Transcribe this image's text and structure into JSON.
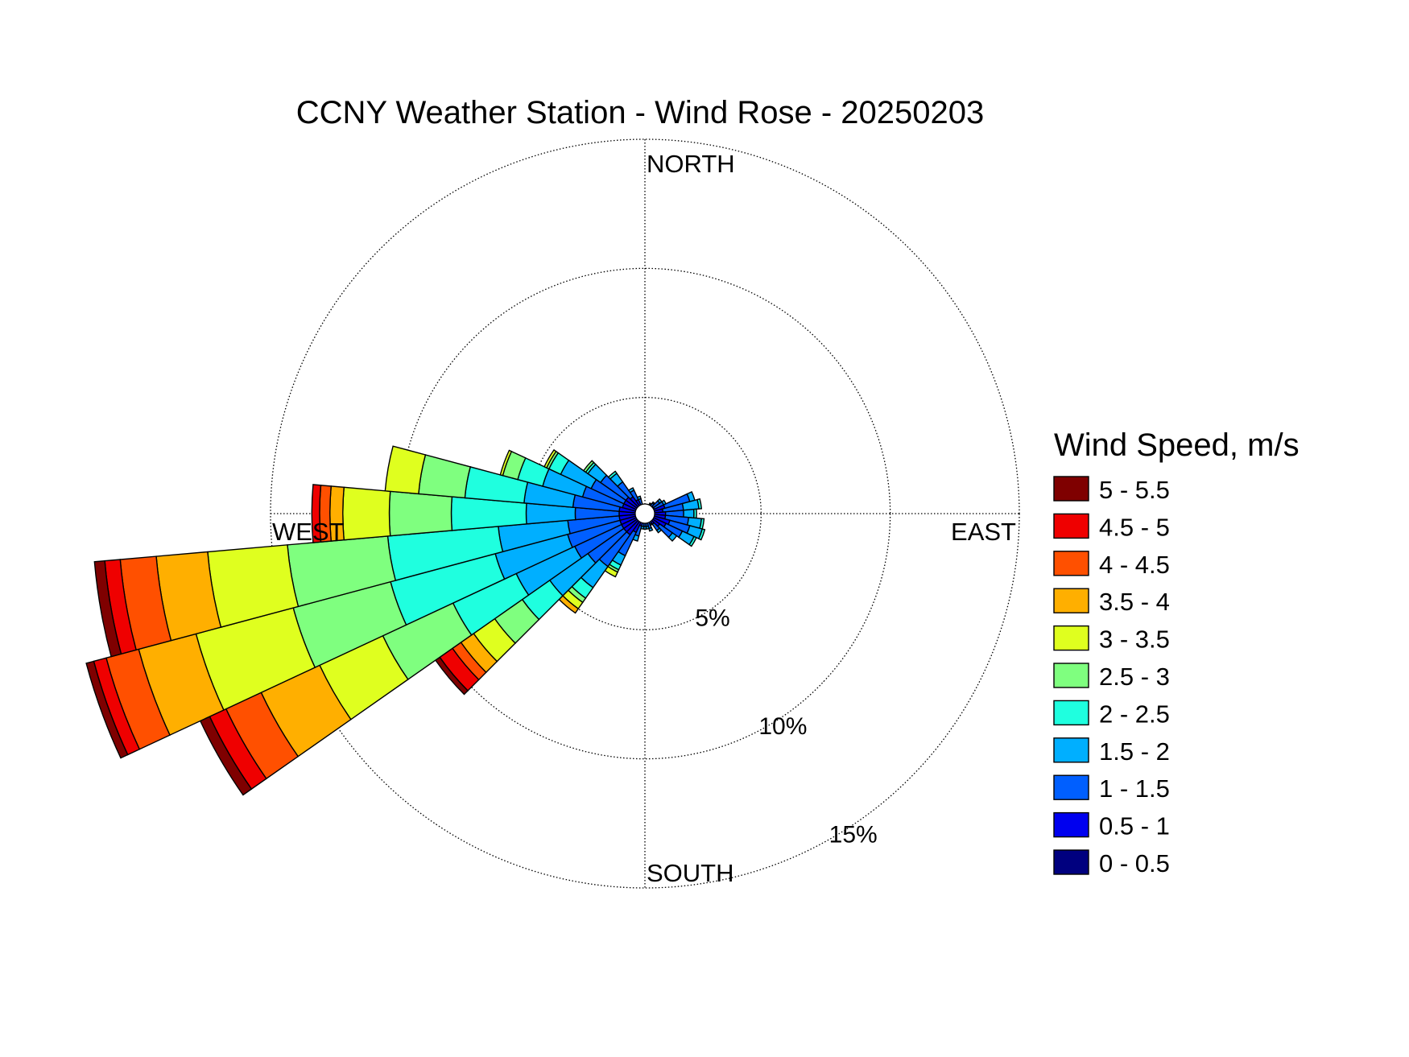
{
  "chart_data": {
    "type": "wind-rose",
    "title": "CCNY Weather Station - Wind Rose - 20250203",
    "directions": {
      "north": "NORTH",
      "east": "EAST",
      "south": "SOUTH",
      "west": "WEST"
    },
    "radial_labels": [
      "5%",
      "10%",
      "15%"
    ],
    "radial_ticks": [
      5,
      10,
      15
    ],
    "rmax": 15,
    "rmin": 0.5,
    "grid": true,
    "legend_title": "Wind Speed, m/s",
    "legend_position": "right",
    "bins": [
      {
        "label": "0 - 0.5",
        "color": "#00007f"
      },
      {
        "label": "0.5 - 1",
        "color": "#0000ef"
      },
      {
        "label": "1 - 1.5",
        "color": "#005fff"
      },
      {
        "label": "1.5 - 2",
        "color": "#00afff"
      },
      {
        "label": "2 - 2.5",
        "color": "#1fffdf"
      },
      {
        "label": "2.5 - 3",
        "color": "#7fff7f"
      },
      {
        "label": "3 - 3.5",
        "color": "#dfff1f"
      },
      {
        "label": "3.5 - 4",
        "color": "#ffaf00"
      },
      {
        "label": "4 - 4.5",
        "color": "#ff5000"
      },
      {
        "label": "4.5 - 5",
        "color": "#ef0000"
      },
      {
        "label": "5 - 5.5",
        "color": "#7f0000"
      }
    ],
    "sector_width_deg": 10,
    "sectors": [
      {
        "dir": 0,
        "cum": [
          0.55,
          0.6,
          0.65,
          0.7
        ]
      },
      {
        "dir": 10,
        "cum": [
          0.55,
          0.6,
          0.7,
          0.75
        ]
      },
      {
        "dir": 20,
        "cum": [
          0.55,
          0.65,
          0.75
        ]
      },
      {
        "dir": 30,
        "cum": [
          0.6,
          0.8,
          0.9,
          0.95
        ]
      },
      {
        "dir": 40,
        "cum": [
          0.6,
          0.8,
          1.0,
          1.05
        ]
      },
      {
        "dir": 50,
        "cum": [
          0.6,
          0.9,
          1.2,
          1.3
        ]
      },
      {
        "dir": 60,
        "cum": [
          0.6,
          0.9,
          1.3,
          1.4
        ]
      },
      {
        "dir": 70,
        "cum": [
          0.65,
          1.3,
          2.3,
          2.5
        ]
      },
      {
        "dir": 80,
        "cum": [
          0.65,
          1.2,
          2.0,
          2.6,
          2.7
        ]
      },
      {
        "dir": 90,
        "cum": [
          0.65,
          1.3,
          2.0,
          2.4,
          2.5
        ]
      },
      {
        "dir": 100,
        "cum": [
          0.6,
          1.3,
          2.2,
          2.7,
          2.8
        ]
      },
      {
        "dir": 110,
        "cum": [
          0.6,
          1.5,
          2.3,
          2.8,
          2.9
        ]
      },
      {
        "dir": 120,
        "cum": [
          0.6,
          1.4,
          2.1,
          2.6,
          2.7
        ]
      },
      {
        "dir": 130,
        "cum": [
          0.55,
          1.2,
          1.8,
          2.0
        ]
      },
      {
        "dir": 140,
        "cum": [
          0.55,
          1.0,
          1.3,
          1.4
        ]
      },
      {
        "dir": 150,
        "cum": [
          0.55,
          0.8,
          0.95,
          1.0
        ]
      },
      {
        "dir": 160,
        "cum": [
          0.55,
          0.8,
          1.1,
          1.2
        ]
      },
      {
        "dir": 170,
        "cum": [
          0.55,
          0.8,
          1.0,
          1.1
        ]
      },
      {
        "dir": 180,
        "cum": [
          0.55,
          0.8,
          1.0,
          1.1
        ]
      },
      {
        "dir": 190,
        "cum": [
          0.55,
          0.7,
          1.0,
          1.1
        ]
      },
      {
        "dir": 200,
        "cum": [
          0.6,
          1.0,
          1.4,
          1.6
        ]
      },
      {
        "dir": 210,
        "cum": [
          0.6,
          1.3,
          2.3,
          2.7,
          2.9,
          3.0,
          3.2
        ]
      },
      {
        "dir": 220,
        "cum": [
          0.6,
          1.5,
          3.0,
          4.0,
          4.5,
          4.7,
          5.0,
          5.2
        ]
      },
      {
        "dir": 230,
        "cum": [
          0.6,
          1.5,
          3.2,
          5.0,
          6.3,
          7.6,
          8.6,
          9.2,
          9.6,
          10.2,
          10.4
        ]
      },
      {
        "dir": 240,
        "cum": [
          0.6,
          1.5,
          3.5,
          6.0,
          8.7,
          11.7,
          14.4,
          16.9,
          18.4,
          19.1,
          19.5
        ]
      },
      {
        "dir": 250,
        "cum": [
          0.6,
          1.5,
          3.6,
          6.5,
          10.7,
          14.6,
          18.5,
          20.8,
          22.1,
          22.6,
          22.9
        ]
      },
      {
        "dir": 260,
        "cum": [
          0.6,
          1.5,
          3.5,
          6.2,
          10.5,
          14.4,
          17.5,
          19.5,
          20.9,
          21.5,
          21.9
        ]
      },
      {
        "dir": 270,
        "cum": [
          0.6,
          1.5,
          3.2,
          5.1,
          8.0,
          10.4,
          12.2,
          12.7,
          13.1,
          13.4
        ]
      },
      {
        "dir": 280,
        "cum": [
          0.6,
          1.5,
          3.3,
          5.2,
          7.5,
          9.3,
          10.6
        ]
      },
      {
        "dir": 290,
        "cum": [
          0.6,
          1.4,
          3.0,
          4.6,
          5.6,
          6.2,
          6.3
        ]
      },
      {
        "dir": 300,
        "cum": [
          0.6,
          1.4,
          2.8,
          4.1,
          4.6,
          4.7,
          4.8
        ]
      },
      {
        "dir": 310,
        "cum": [
          0.6,
          1.4,
          2.6,
          3.2,
          3.3,
          3.4
        ]
      },
      {
        "dir": 320,
        "cum": [
          0.6,
          1.3,
          2.0,
          2.4,
          2.5
        ]
      },
      {
        "dir": 330,
        "cum": [
          0.6,
          1.1,
          1.5,
          1.6
        ]
      },
      {
        "dir": 340,
        "cum": [
          0.6,
          0.8,
          1.1,
          1.2
        ]
      },
      {
        "dir": 350,
        "cum": [
          0.55,
          0.65,
          0.8
        ]
      }
    ]
  }
}
